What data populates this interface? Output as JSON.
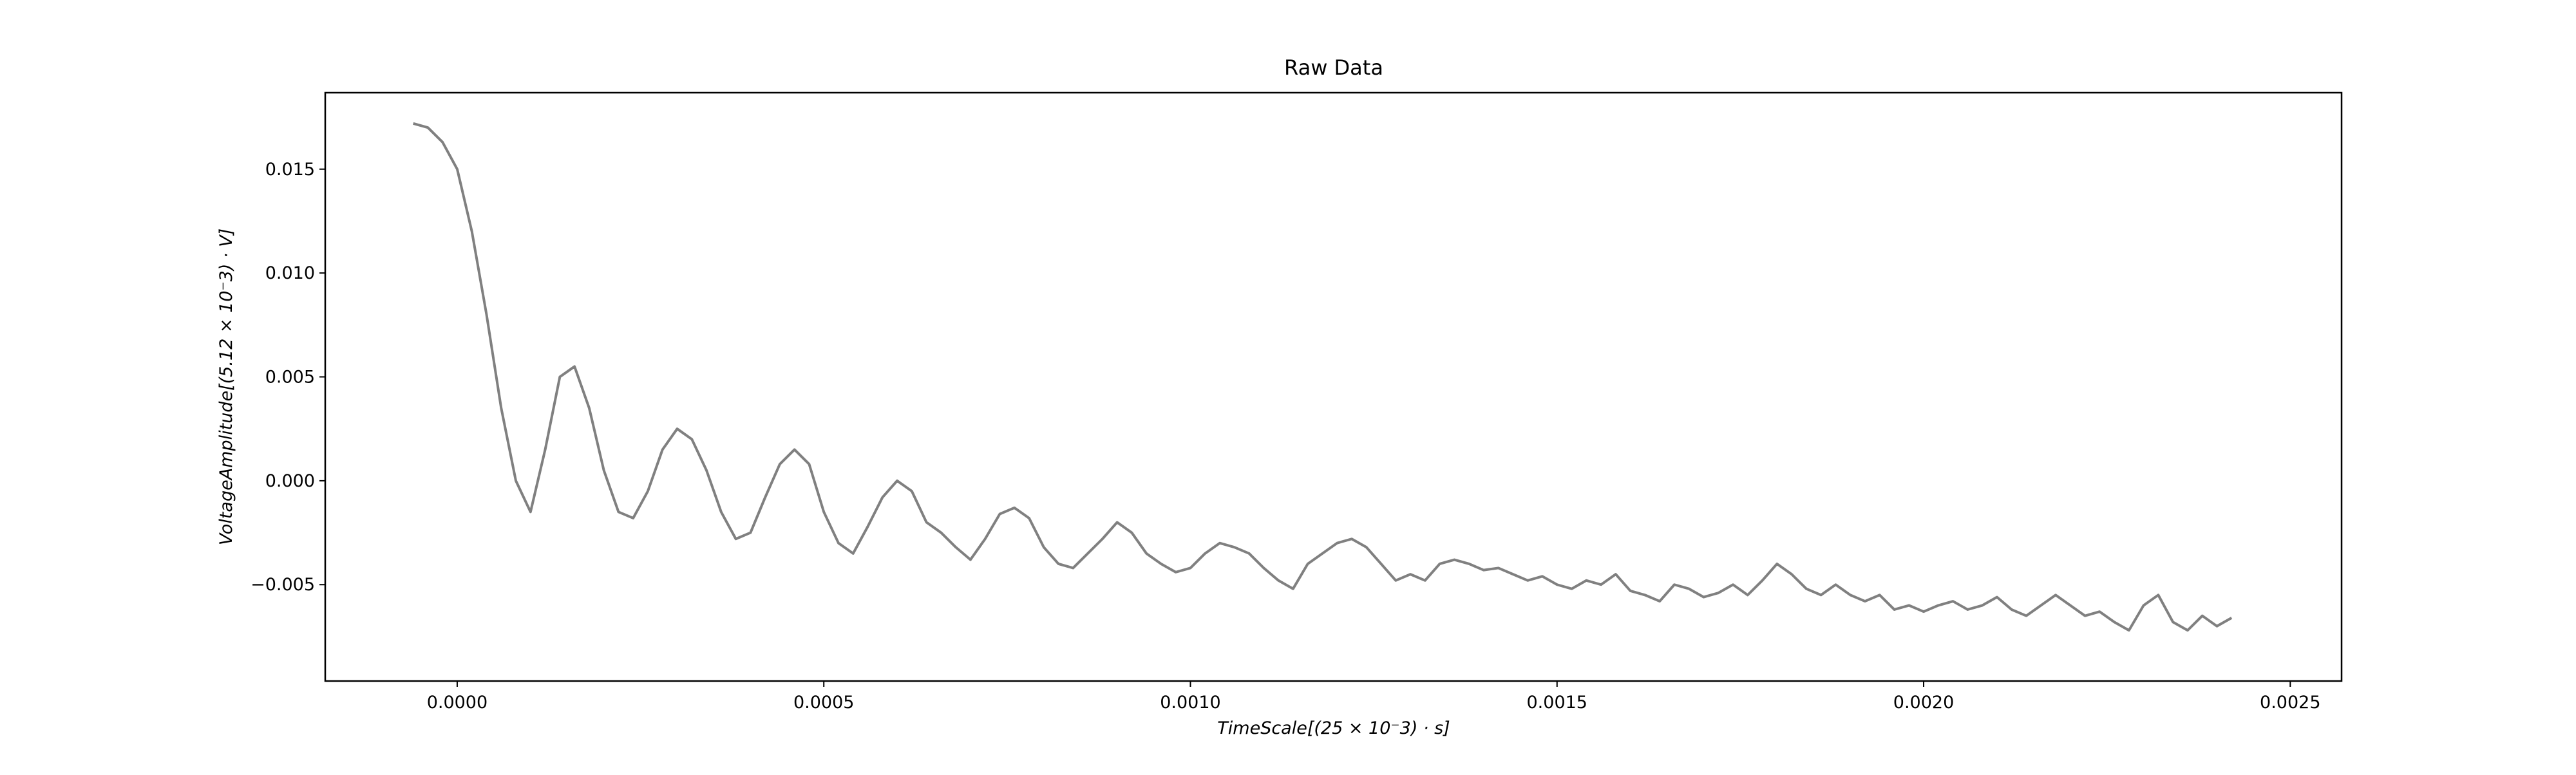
{
  "chart_data": {
    "type": "line",
    "title": "Raw Data",
    "x_label": "TimeScale[(25 × 10⁻3) · s]",
    "y_label": "VoltageAmplitude[(5.12 × 10⁻3) · V]",
    "xlim": [
      -0.00018,
      0.00257
    ],
    "ylim": [
      -0.00964,
      0.01868
    ],
    "xticks": [
      {
        "value": 0,
        "label": "0.0000"
      },
      {
        "value": 0.0005,
        "label": "0.0005"
      },
      {
        "value": 0.001,
        "label": "0.0010"
      },
      {
        "value": 0.0015,
        "label": "0.0015"
      },
      {
        "value": 0.002,
        "label": "0.0020"
      },
      {
        "value": 0.0025,
        "label": "0.0025"
      }
    ],
    "yticks": [
      {
        "value": -0.005,
        "label": "−0.005"
      },
      {
        "value": 0,
        "label": "0.000"
      },
      0.005,
      {
        "value": 0.01,
        "label": "0.010"
      },
      0.015
    ],
    "series": [
      {
        "color": "#808080",
        "x": [
          -6e-05,
          -4e-05,
          -2e-05,
          0,
          2e-05,
          4e-05,
          6e-05,
          8e-05,
          0.0001,
          0.00012,
          0.00014,
          0.00016,
          0.00018,
          0.0002,
          0.00022,
          0.00024,
          0.00026,
          0.00028,
          0.0003,
          0.00032,
          0.00034,
          0.00036,
          0.00038,
          0.0004,
          0.00042,
          0.00044,
          0.00046,
          0.00048,
          0.0005,
          0.00052,
          0.00054,
          0.00056,
          0.00058,
          0.0006,
          0.00062,
          0.00064,
          0.00066,
          0.00068,
          0.0007,
          0.00072,
          0.00074,
          0.00076,
          0.00078,
          0.0008,
          0.00082,
          0.00084,
          0.00086,
          0.00088,
          0.0009,
          0.00092,
          0.00094,
          0.00096,
          0.00098,
          0.001,
          0.00102,
          0.00104,
          0.00106,
          0.00108,
          0.0011,
          0.00112,
          0.00114,
          0.00116,
          0.00118,
          0.0012,
          0.00122,
          0.00124,
          0.00126,
          0.00128,
          0.0013,
          0.00132,
          0.00134,
          0.00136,
          0.00138,
          0.0014,
          0.00142,
          0.00144,
          0.00146,
          0.00148,
          0.0015,
          0.00152,
          0.00154,
          0.00156,
          0.00158,
          0.0016,
          0.00162,
          0.00164,
          0.00166,
          0.00168,
          0.0017,
          0.00172,
          0.00174,
          0.00176,
          0.00178,
          0.0018,
          0.00182,
          0.00184,
          0.00186,
          0.00188,
          0.0019,
          0.00192,
          0.00194,
          0.00196,
          0.00198,
          0.002,
          0.00202,
          0.00204,
          0.00206,
          0.00208,
          0.0021,
          0.00212,
          0.00214,
          0.00216,
          0.00218,
          0.0022,
          0.00222,
          0.00224,
          0.00226,
          0.00228,
          0.0023,
          0.00232,
          0.00234,
          0.00236,
          0.00238,
          0.0024,
          0.00242
        ],
        "values": [
          0.0172,
          0.017,
          0.0163,
          0.015,
          0.012,
          0.008,
          0.0035,
          0,
          -0.0015,
          0.0015,
          0.005,
          0.0055,
          0.0035,
          0.0005,
          -0.0015,
          -0.0018,
          -0.0005,
          0.0015,
          0.0025,
          0.002,
          0.0005,
          -0.0015,
          -0.0028,
          -0.0025,
          -0.0008,
          0.0008,
          0.0015,
          0.0008,
          -0.0015,
          -0.003,
          -0.0035,
          -0.0022,
          -0.0008,
          0,
          -0.0005,
          -0.002,
          -0.0025,
          -0.0032,
          -0.0038,
          -0.0028,
          -0.0016,
          -0.0013,
          -0.0018,
          -0.0032,
          -0.004,
          -0.0042,
          -0.0035,
          -0.0028,
          -0.002,
          -0.0025,
          -0.0035,
          -0.004,
          -0.0044,
          -0.0042,
          -0.0035,
          -0.003,
          -0.0032,
          -0.0035,
          -0.0042,
          -0.0048,
          -0.0052,
          -0.004,
          -0.0035,
          -0.003,
          -0.0028,
          -0.0032,
          -0.004,
          -0.0048,
          -0.0045,
          -0.0048,
          -0.004,
          -0.0038,
          -0.004,
          -0.0043,
          -0.0042,
          -0.0045,
          -0.0048,
          -0.0046,
          -0.005,
          -0.0052,
          -0.0048,
          -0.005,
          -0.0045,
          -0.0053,
          -0.0055,
          -0.0058,
          -0.005,
          -0.0052,
          -0.0056,
          -0.0054,
          -0.005,
          -0.0055,
          -0.0048,
          -0.004,
          -0.0045,
          -0.0052,
          -0.0055,
          -0.005,
          -0.0055,
          -0.0058,
          -0.0055,
          -0.0062,
          -0.006,
          -0.0063,
          -0.006,
          -0.0058,
          -0.0062,
          -0.006,
          -0.0056,
          -0.0062,
          -0.0065,
          -0.006,
          -0.0055,
          -0.006,
          -0.0065,
          -0.0063,
          -0.0068,
          -0.0072,
          -0.006,
          -0.0055,
          -0.0068,
          -0.0072,
          -0.0065,
          -0.007,
          -0.0066
        ]
      }
    ]
  }
}
